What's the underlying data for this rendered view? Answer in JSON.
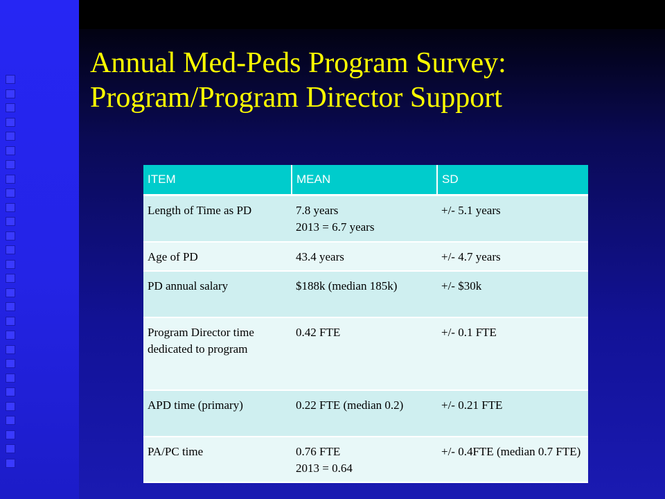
{
  "title": {
    "line1": "Annual Med-Peds Program Survey:",
    "line2": "Program/Program Director Support"
  },
  "table": {
    "headers": [
      "ITEM",
      "MEAN",
      "SD"
    ],
    "rows": [
      {
        "item": "Length of Time as PD",
        "mean": [
          "7.8 years",
          "2013 = 6.7 years"
        ],
        "sd": "+/- 5.1 years"
      },
      {
        "item": "Age of PD",
        "mean": [
          "43.4 years"
        ],
        "sd": "+/- 4.7 years"
      },
      {
        "item": "PD annual salary",
        "mean": [
          "$188k (median 185k)"
        ],
        "sd": "+/- $30k"
      },
      {
        "item": "Program Director time dedicated to program",
        "mean": [
          "0.42 FTE"
        ],
        "sd": "+/- 0.1 FTE"
      },
      {
        "item": "APD time (primary)",
        "mean": [
          "0.22 FTE (median 0.2)"
        ],
        "sd": "+/- 0.21 FTE"
      },
      {
        "item": "PA/PC time",
        "mean": [
          "0.76 FTE",
          "2013 = 0.64"
        ],
        "sd": "+/- 0.4FTE (median 0.7 FTE)"
      }
    ]
  },
  "colors": {
    "title": "#ffff00",
    "header_bg": "#00cccc",
    "row_odd": "#cfeff0",
    "row_even": "#e8f8f8",
    "stripe": "#2626f4"
  }
}
